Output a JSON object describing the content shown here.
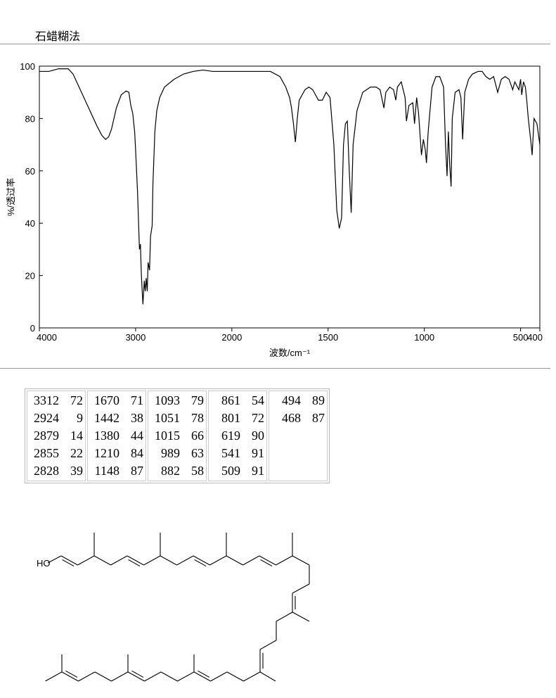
{
  "title": "石蜡糊法",
  "chart_data": {
    "type": "line",
    "xlabel": "波数/cm⁻¹",
    "ylabel": "%/透过率",
    "xlim": [
      4000,
      400
    ],
    "ylim": [
      0,
      100
    ],
    "xscale": {
      "split": 2000,
      "factor": 2
    },
    "xticks": [
      4000,
      3000,
      2000,
      1500,
      1000,
      500,
      400
    ],
    "yticks": [
      0,
      20,
      40,
      60,
      80,
      100
    ],
    "color": "#000000",
    "series": [
      {
        "x": [
          4000,
          3900,
          3800,
          3700,
          3650,
          3600,
          3500,
          3400,
          3350,
          3312,
          3280,
          3250,
          3200,
          3150,
          3100,
          3070,
          3050,
          3030,
          3010,
          3000,
          2980,
          2960,
          2950,
          2940,
          2924,
          2910,
          2900,
          2890,
          2879,
          2870,
          2855,
          2845,
          2828,
          2820,
          2800,
          2780,
          2750,
          2700,
          2600,
          2500,
          2400,
          2300,
          2200,
          2100,
          2000,
          1900,
          1800,
          1750,
          1720,
          1700,
          1690,
          1680,
          1670,
          1660,
          1650,
          1620,
          1600,
          1580,
          1550,
          1530,
          1510,
          1490,
          1470,
          1455,
          1442,
          1430,
          1420,
          1410,
          1400,
          1390,
          1380,
          1370,
          1350,
          1320,
          1300,
          1280,
          1250,
          1230,
          1210,
          1200,
          1180,
          1160,
          1148,
          1140,
          1120,
          1100,
          1093,
          1080,
          1060,
          1051,
          1040,
          1030,
          1015,
          1005,
          995,
          989,
          980,
          960,
          940,
          920,
          900,
          890,
          882,
          875,
          868,
          861,
          855,
          840,
          820,
          810,
          801,
          790,
          770,
          750,
          720,
          700,
          680,
          660,
          640,
          619,
          600,
          580,
          560,
          541,
          530,
          509,
          500,
          494,
          485,
          475,
          468,
          460,
          445,
          440,
          430,
          415,
          400
        ],
        "values": [
          98,
          98,
          99,
          99,
          97,
          93,
          85,
          77,
          73.5,
          72,
          73,
          76,
          84,
          89,
          90.5,
          90,
          85,
          82,
          75,
          68,
          52,
          30,
          32,
          20,
          9,
          18,
          14,
          19,
          14,
          25,
          22,
          35,
          39,
          55,
          75,
          83,
          88,
          92,
          95,
          97,
          98,
          98.5,
          98,
          98,
          98,
          98,
          98,
          96,
          92,
          88,
          84,
          78,
          71,
          80,
          87,
          91,
          92,
          91,
          87,
          87,
          90,
          88,
          70,
          45,
          38,
          42,
          70,
          78,
          79,
          60,
          44,
          70,
          83,
          90,
          91,
          92,
          92,
          91,
          84,
          90,
          92,
          91,
          87,
          92,
          94,
          88,
          79,
          85,
          86,
          78,
          88,
          82,
          66,
          72,
          68,
          63,
          75,
          92,
          96,
          96,
          92,
          70,
          58,
          75,
          62,
          54,
          80,
          90,
          91,
          88,
          72,
          90,
          95,
          97,
          98,
          98,
          96,
          95,
          96,
          90,
          95,
          96,
          95,
          91,
          94,
          91,
          95,
          89,
          94,
          92,
          87,
          80,
          70,
          66,
          80,
          78,
          70
        ]
      }
    ]
  },
  "peak_table": [
    [
      [
        3312,
        72
      ],
      [
        2924,
        9
      ],
      [
        2879,
        14
      ],
      [
        2855,
        22
      ],
      [
        2828,
        39
      ]
    ],
    [
      [
        1670,
        71
      ],
      [
        1442,
        38
      ],
      [
        1380,
        44
      ],
      [
        1210,
        84
      ],
      [
        1148,
        87
      ]
    ],
    [
      [
        1093,
        79
      ],
      [
        1051,
        78
      ],
      [
        1015,
        66
      ],
      [
        989,
        63
      ],
      [
        882,
        58
      ]
    ],
    [
      [
        861,
        54
      ],
      [
        801,
        72
      ],
      [
        619,
        90
      ],
      [
        541,
        91
      ],
      [
        509,
        91
      ]
    ],
    [
      [
        494,
        89
      ],
      [
        468,
        87
      ]
    ]
  ],
  "structure": {
    "label": "HO"
  }
}
